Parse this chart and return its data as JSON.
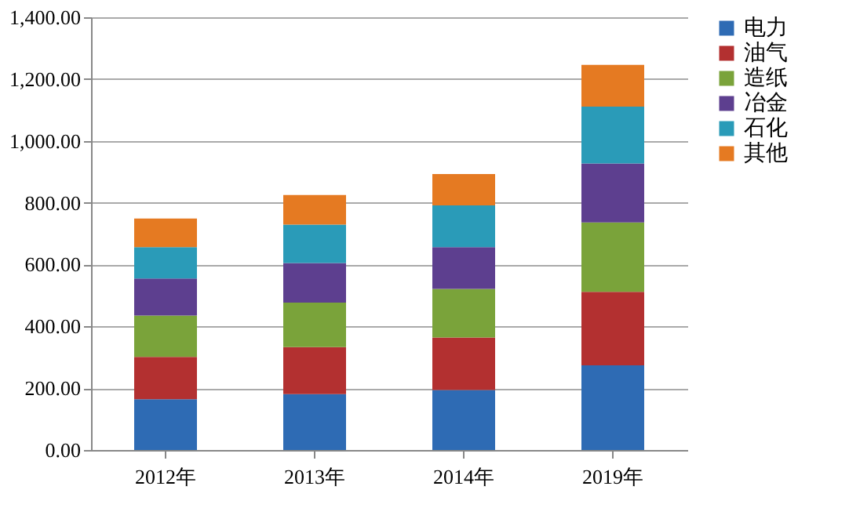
{
  "chart_data": {
    "type": "bar",
    "stacked": true,
    "categories": [
      "2012年",
      "2013年",
      "2014年",
      "2019年"
    ],
    "series": [
      {
        "name": "电力",
        "color": "#2e6bb4",
        "values": [
          164,
          181,
          194,
          274
        ]
      },
      {
        "name": "油气",
        "color": "#b33030",
        "values": [
          137,
          152,
          170,
          238
        ]
      },
      {
        "name": "造纸",
        "color": "#7aa33a",
        "values": [
          134,
          144,
          157,
          224
        ]
      },
      {
        "name": "冶金",
        "color": "#5d3f8f",
        "values": [
          120,
          128,
          135,
          191
        ]
      },
      {
        "name": "石化",
        "color": "#2a9bb8",
        "values": [
          101,
          124,
          135,
          184
        ]
      },
      {
        "name": "其他",
        "color": "#e57a22",
        "values": [
          93,
          96,
          102,
          135
        ]
      }
    ],
    "ylim": [
      0,
      1400
    ],
    "yticks": [
      {
        "value": 0,
        "label": "0.00"
      },
      {
        "value": 200,
        "label": "200.00"
      },
      {
        "value": 400,
        "label": "400.00"
      },
      {
        "value": 600,
        "label": "600.00"
      },
      {
        "value": 800,
        "label": "800.00"
      },
      {
        "value": 1000,
        "label": "1,000.00"
      },
      {
        "value": 1200,
        "label": "1,200.00"
      },
      {
        "value": 1400,
        "label": "1,400.00"
      }
    ],
    "grid": "y",
    "legend": "right"
  }
}
